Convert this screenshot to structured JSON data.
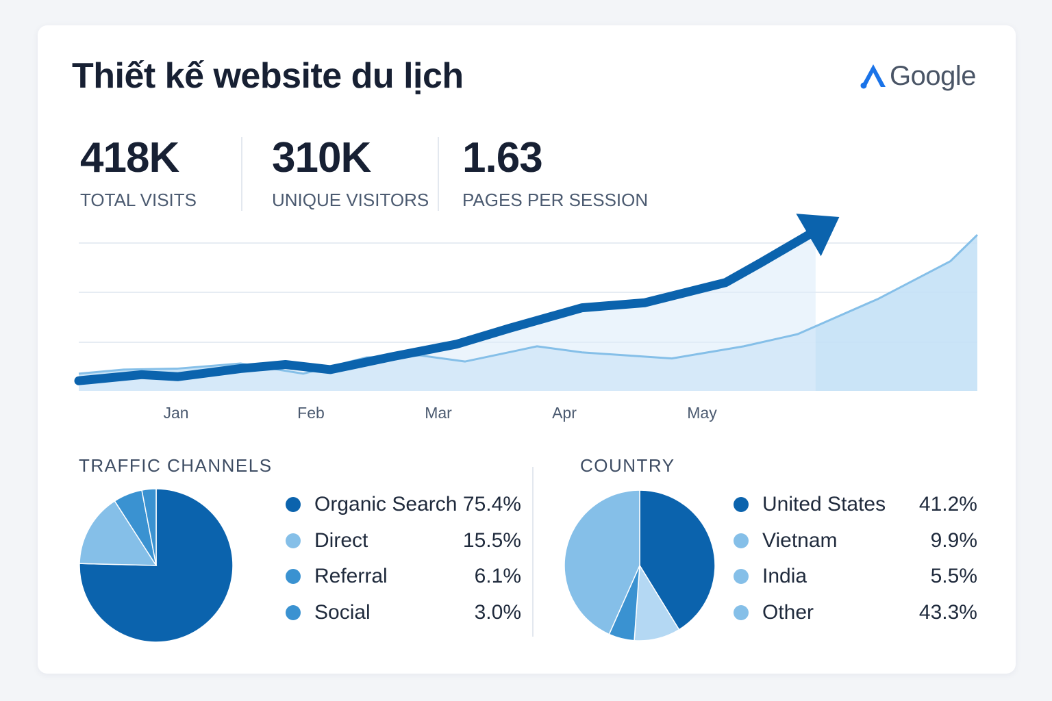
{
  "title": "Thiết kế website du lịch",
  "logo": {
    "text": "Google",
    "accent": "#1a73e8"
  },
  "kpis": [
    {
      "value": "418K",
      "label": "TOTAL VISITS"
    },
    {
      "value": "310K",
      "label": "UNIQUE VISITORS"
    },
    {
      "value": "1.63",
      "label": "PAGES PER SESSION"
    }
  ],
  "colors": {
    "dark": "#0b63ad",
    "mid": "#3a92d1",
    "light": "#85bfe8",
    "pale": "#b4d8f3",
    "area": "#c4e1f6",
    "area2": "#deedfa"
  },
  "chart_data": [
    {
      "type": "line",
      "title": "",
      "xlabel": "",
      "ylabel": "",
      "x_ticks": [
        "Jan",
        "Feb",
        "Mar",
        "Apr",
        "May"
      ],
      "grid": true,
      "legend": "none",
      "series": [
        {
          "style": "bold line with arrow",
          "points": [
            [
              0,
              10
            ],
            [
              0.7,
              16
            ],
            [
              1.1,
              14
            ],
            [
              1.8,
              22
            ],
            [
              2.3,
              26
            ],
            [
              2.8,
              21
            ],
            [
              3.5,
              34
            ],
            [
              4.2,
              46
            ],
            [
              4.8,
              62
            ],
            [
              5.6,
              82
            ],
            [
              6.3,
              87
            ],
            [
              7.2,
              107
            ],
            [
              7.6,
              127
            ],
            [
              8.2,
              158
            ]
          ]
        },
        {
          "style": "thin line with area",
          "points": [
            [
              0,
              17
            ],
            [
              0.5,
              21
            ],
            [
              1.1,
              22
            ],
            [
              1.8,
              27
            ],
            [
              2.5,
              17
            ],
            [
              3.2,
              33
            ],
            [
              3.8,
              35
            ],
            [
              4.3,
              29
            ],
            [
              5.1,
              44
            ],
            [
              5.6,
              38
            ],
            [
              6.6,
              32
            ],
            [
              7.4,
              44
            ],
            [
              8.0,
              56
            ],
            [
              8.9,
              91
            ],
            [
              9.7,
              128
            ],
            [
              10,
              154
            ]
          ]
        }
      ]
    },
    {
      "type": "pie",
      "title": "TRAFFIC CHANNELS",
      "categories": [
        "Organic Search",
        "Direct",
        "Referral",
        "Social"
      ],
      "labels": [
        "75.4%",
        "15.5%",
        "6.1%",
        "3.0%"
      ],
      "values": [
        75.4,
        15.5,
        6.1,
        3.0
      ],
      "legend": "right"
    },
    {
      "type": "pie",
      "title": "COUNTRY",
      "categories": [
        "United States",
        "Vietnam",
        "India",
        "Other"
      ],
      "labels": [
        "41.2%",
        "9.9%",
        "5.5%",
        "43.3%"
      ],
      "values": [
        41.2,
        9.9,
        5.5,
        43.3
      ],
      "legend": "right"
    }
  ]
}
